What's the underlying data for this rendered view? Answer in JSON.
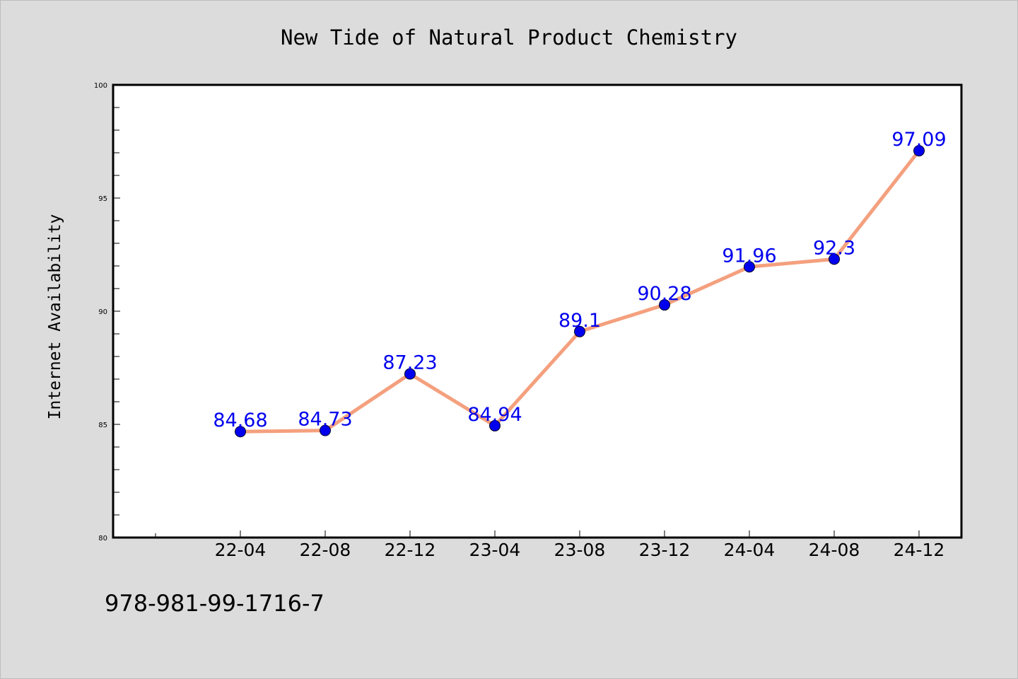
{
  "chart_data": {
    "type": "line",
    "title": "New Tide of Natural Product Chemistry",
    "xlabel": "",
    "ylabel": "Internet Availability",
    "categories": [
      "22-04",
      "22-08",
      "22-12",
      "23-04",
      "23-08",
      "23-12",
      "24-04",
      "24-08",
      "24-12"
    ],
    "series": [
      {
        "values": [
          84.68,
          84.73,
          87.23,
          84.94,
          89.1,
          90.28,
          91.96,
          92.3,
          97.09
        ],
        "labels": [
          "84.68",
          "84.73",
          "87.23",
          "84.94",
          "89.1",
          "90.28",
          "91.96",
          "92.3",
          "97.09"
        ]
      }
    ],
    "ylim": [
      80,
      100
    ],
    "yticks": [
      "80",
      "85",
      "90",
      "95",
      "100"
    ],
    "grid": false,
    "legend": "none",
    "colors": {
      "line": "#f4a07e",
      "marker": "#0000ee",
      "data_label": "#0000ee",
      "background": "#dcdcdc",
      "plot_area": "#ffffff"
    }
  },
  "footer": {
    "isbn": "978-981-99-1716-7"
  }
}
